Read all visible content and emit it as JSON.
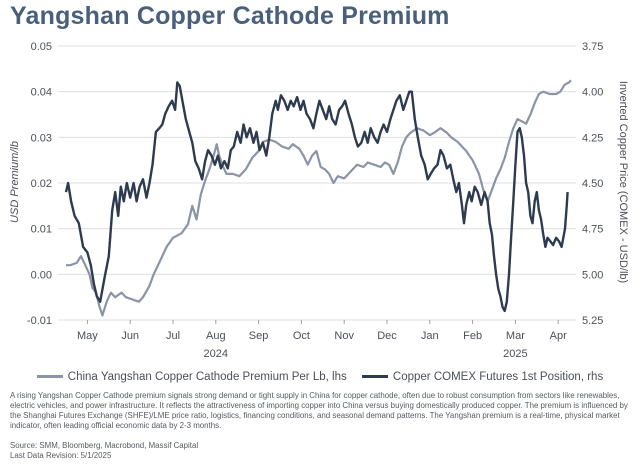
{
  "chart_data": {
    "type": "line",
    "title": "Yangshan Copper Cathode Premium",
    "ylabel_left": "USD Premium/lb",
    "ylabel_right": "Inverted Copper Price (COMEX - USD/lb)",
    "x_ticks": [
      "May",
      "Jun",
      "Jul",
      "Aug",
      "Sep",
      "Oct",
      "Nov",
      "Dec",
      "Jan",
      "Feb",
      "Mar",
      "Apr"
    ],
    "year_labels": [
      {
        "label": "2024",
        "month": "Aug"
      },
      {
        "label": "2025",
        "month": "Mar"
      }
    ],
    "y_left": {
      "min": -0.01,
      "max": 0.05,
      "ticks": [
        "-0.01",
        "0.00",
        "0.01",
        "0.02",
        "0.03",
        "0.04",
        "0.05"
      ]
    },
    "y_right": {
      "min": 3.75,
      "max": 5.25,
      "inverted": true,
      "ticks": [
        "3.75",
        "4.00",
        "4.25",
        "4.50",
        "4.75",
        "5.00",
        "5.25"
      ]
    },
    "x_unit": "months since 2024-04-15",
    "series": [
      {
        "name": "China Yangshan Copper Cathode Premium Per Lb, lhs",
        "axis": "left",
        "color": "#8a94a6",
        "points": [
          [
            0.0,
            0.002
          ],
          [
            0.1,
            0.002
          ],
          [
            0.25,
            0.0025
          ],
          [
            0.35,
            0.004
          ],
          [
            0.45,
            0.002
          ],
          [
            0.55,
            0.0
          ],
          [
            0.62,
            -0.003
          ],
          [
            0.7,
            -0.004
          ],
          [
            0.78,
            -0.007
          ],
          [
            0.85,
            -0.009
          ],
          [
            0.95,
            -0.006
          ],
          [
            1.05,
            -0.004
          ],
          [
            1.15,
            -0.005
          ],
          [
            1.3,
            -0.004
          ],
          [
            1.4,
            -0.005
          ],
          [
            1.55,
            -0.0055
          ],
          [
            1.7,
            -0.006
          ],
          [
            1.8,
            -0.005
          ],
          [
            1.95,
            -0.0025
          ],
          [
            2.05,
            0.0
          ],
          [
            2.2,
            0.003
          ],
          [
            2.35,
            0.006
          ],
          [
            2.5,
            0.008
          ],
          [
            2.7,
            0.009
          ],
          [
            2.85,
            0.011
          ],
          [
            2.95,
            0.015
          ],
          [
            3.05,
            0.012
          ],
          [
            3.15,
            0.0175
          ],
          [
            3.25,
            0.0205
          ],
          [
            3.35,
            0.023
          ],
          [
            3.45,
            0.026
          ],
          [
            3.52,
            0.0285
          ],
          [
            3.58,
            0.026
          ],
          [
            3.65,
            0.024
          ],
          [
            3.75,
            0.022
          ],
          [
            3.9,
            0.022
          ],
          [
            4.05,
            0.0215
          ],
          [
            4.2,
            0.023
          ],
          [
            4.35,
            0.0255
          ],
          [
            4.5,
            0.027
          ],
          [
            4.6,
            0.029
          ],
          [
            4.75,
            0.0295
          ],
          [
            4.9,
            0.029
          ],
          [
            5.05,
            0.028
          ],
          [
            5.2,
            0.0275
          ],
          [
            5.3,
            0.0285
          ],
          [
            5.45,
            0.0275
          ],
          [
            5.55,
            0.026
          ],
          [
            5.65,
            0.024
          ],
          [
            5.75,
            0.026
          ],
          [
            5.85,
            0.027
          ],
          [
            5.95,
            0.0235
          ],
          [
            6.05,
            0.023
          ],
          [
            6.15,
            0.022
          ],
          [
            6.25,
            0.02
          ],
          [
            6.35,
            0.0215
          ],
          [
            6.5,
            0.021
          ],
          [
            6.65,
            0.0225
          ],
          [
            6.8,
            0.024
          ],
          [
            6.95,
            0.0235
          ],
          [
            7.05,
            0.0245
          ],
          [
            7.2,
            0.024
          ],
          [
            7.35,
            0.0235
          ],
          [
            7.45,
            0.0245
          ],
          [
            7.55,
            0.024
          ],
          [
            7.65,
            0.022
          ],
          [
            7.75,
            0.0245
          ],
          [
            7.85,
            0.028
          ],
          [
            7.95,
            0.03
          ],
          [
            8.05,
            0.031
          ],
          [
            8.2,
            0.032
          ],
          [
            8.35,
            0.0315
          ],
          [
            8.5,
            0.0305
          ],
          [
            8.6,
            0.031
          ],
          [
            8.75,
            0.032
          ],
          [
            8.9,
            0.031
          ],
          [
            9.0,
            0.03
          ],
          [
            9.15,
            0.029
          ],
          [
            9.35,
            0.027
          ],
          [
            9.5,
            0.025
          ],
          [
            9.65,
            0.022
          ],
          [
            9.75,
            0.0185
          ],
          [
            9.85,
            0.016
          ],
          [
            9.95,
            0.0185
          ],
          [
            10.05,
            0.021
          ],
          [
            10.15,
            0.023
          ],
          [
            10.25,
            0.0255
          ],
          [
            10.35,
            0.029
          ],
          [
            10.45,
            0.032
          ],
          [
            10.55,
            0.034
          ],
          [
            10.65,
            0.0335
          ],
          [
            10.75,
            0.033
          ],
          [
            10.85,
            0.035
          ],
          [
            10.95,
            0.0375
          ],
          [
            11.05,
            0.0395
          ],
          [
            11.15,
            0.04
          ],
          [
            11.3,
            0.0395
          ],
          [
            11.45,
            0.0395
          ],
          [
            11.55,
            0.04
          ],
          [
            11.65,
            0.0415
          ],
          [
            11.75,
            0.042
          ],
          [
            11.8,
            0.0425
          ]
        ]
      },
      {
        "name": "Copper COMEX Futures 1st Position, rhs",
        "axis": "right",
        "color": "#2e3b4f",
        "points": [
          [
            0.0,
            4.55
          ],
          [
            0.05,
            4.5
          ],
          [
            0.12,
            4.6
          ],
          [
            0.2,
            4.68
          ],
          [
            0.3,
            4.72
          ],
          [
            0.4,
            4.85
          ],
          [
            0.5,
            4.88
          ],
          [
            0.58,
            4.95
          ],
          [
            0.65,
            5.05
          ],
          [
            0.72,
            5.12
          ],
          [
            0.8,
            5.15
          ],
          [
            0.9,
            5.02
          ],
          [
            1.0,
            4.9
          ],
          [
            1.08,
            4.65
          ],
          [
            1.15,
            4.55
          ],
          [
            1.22,
            4.68
          ],
          [
            1.28,
            4.52
          ],
          [
            1.35,
            4.6
          ],
          [
            1.42,
            4.5
          ],
          [
            1.5,
            4.58
          ],
          [
            1.58,
            4.5
          ],
          [
            1.65,
            4.6
          ],
          [
            1.72,
            4.52
          ],
          [
            1.8,
            4.48
          ],
          [
            1.88,
            4.58
          ],
          [
            1.95,
            4.5
          ],
          [
            2.02,
            4.4
          ],
          [
            2.1,
            4.22
          ],
          [
            2.18,
            4.2
          ],
          [
            2.25,
            4.18
          ],
          [
            2.32,
            4.12
          ],
          [
            2.4,
            4.08
          ],
          [
            2.48,
            4.05
          ],
          [
            2.55,
            4.1
          ],
          [
            2.6,
            3.95
          ],
          [
            2.66,
            3.97
          ],
          [
            2.72,
            4.05
          ],
          [
            2.8,
            4.15
          ],
          [
            2.88,
            4.22
          ],
          [
            2.95,
            4.28
          ],
          [
            3.02,
            4.38
          ],
          [
            3.1,
            4.42
          ],
          [
            3.18,
            4.48
          ],
          [
            3.25,
            4.38
          ],
          [
            3.32,
            4.32
          ],
          [
            3.4,
            4.35
          ],
          [
            3.48,
            4.4
          ],
          [
            3.55,
            4.35
          ],
          [
            3.62,
            4.42
          ],
          [
            3.7,
            4.38
          ],
          [
            3.78,
            4.42
          ],
          [
            3.85,
            4.32
          ],
          [
            3.92,
            4.3
          ],
          [
            4.0,
            4.22
          ],
          [
            4.08,
            4.28
          ],
          [
            4.15,
            4.18
          ],
          [
            4.22,
            4.25
          ],
          [
            4.3,
            4.2
          ],
          [
            4.38,
            4.28
          ],
          [
            4.45,
            4.22
          ],
          [
            4.52,
            4.32
          ],
          [
            4.6,
            4.28
          ],
          [
            4.68,
            4.35
          ],
          [
            4.75,
            4.25
          ],
          [
            4.82,
            4.12
          ],
          [
            4.9,
            4.05
          ],
          [
            4.95,
            4.1
          ],
          [
            5.02,
            4.02
          ],
          [
            5.1,
            4.05
          ],
          [
            5.18,
            4.1
          ],
          [
            5.25,
            4.05
          ],
          [
            5.32,
            4.08
          ],
          [
            5.4,
            4.03
          ],
          [
            5.48,
            4.1
          ],
          [
            5.55,
            4.05
          ],
          [
            5.62,
            4.12
          ],
          [
            5.7,
            4.15
          ],
          [
            5.78,
            4.2
          ],
          [
            5.85,
            4.12
          ],
          [
            5.92,
            4.05
          ],
          [
            6.0,
            4.1
          ],
          [
            6.08,
            4.15
          ],
          [
            6.15,
            4.08
          ],
          [
            6.22,
            4.15
          ],
          [
            6.3,
            4.18
          ],
          [
            6.38,
            4.1
          ],
          [
            6.45,
            4.08
          ],
          [
            6.52,
            4.05
          ],
          [
            6.6,
            4.12
          ],
          [
            6.68,
            4.18
          ],
          [
            6.75,
            4.25
          ],
          [
            6.82,
            4.3
          ],
          [
            6.9,
            4.28
          ],
          [
            6.98,
            4.22
          ],
          [
            7.05,
            4.28
          ],
          [
            7.12,
            4.2
          ],
          [
            7.2,
            4.25
          ],
          [
            7.28,
            4.28
          ],
          [
            7.35,
            4.22
          ],
          [
            7.42,
            4.18
          ],
          [
            7.5,
            4.22
          ],
          [
            7.58,
            4.15
          ],
          [
            7.65,
            4.1
          ],
          [
            7.72,
            4.05
          ],
          [
            7.8,
            4.02
          ],
          [
            7.88,
            4.1
          ],
          [
            7.95,
            4.05
          ],
          [
            8.02,
            4.0
          ],
          [
            8.08,
            4.0
          ],
          [
            8.15,
            4.15
          ],
          [
            8.22,
            4.25
          ],
          [
            8.3,
            4.35
          ],
          [
            8.38,
            4.4
          ],
          [
            8.45,
            4.48
          ],
          [
            8.52,
            4.45
          ],
          [
            8.6,
            4.42
          ],
          [
            8.68,
            4.4
          ],
          [
            8.75,
            4.32
          ],
          [
            8.82,
            4.35
          ],
          [
            8.9,
            4.42
          ],
          [
            8.98,
            4.4
          ],
          [
            9.05,
            4.48
          ],
          [
            9.12,
            4.55
          ],
          [
            9.18,
            4.5
          ],
          [
            9.25,
            4.62
          ],
          [
            9.3,
            4.72
          ],
          [
            9.35,
            4.62
          ],
          [
            9.42,
            4.55
          ],
          [
            9.48,
            4.6
          ],
          [
            9.55,
            4.52
          ],
          [
            9.62,
            4.55
          ],
          [
            9.7,
            4.62
          ],
          [
            9.78,
            4.55
          ],
          [
            9.85,
            4.6
          ],
          [
            9.9,
            4.72
          ],
          [
            9.95,
            4.78
          ],
          [
            10.0,
            4.9
          ],
          [
            10.05,
            5.0
          ],
          [
            10.1,
            5.08
          ],
          [
            10.15,
            5.12
          ],
          [
            10.2,
            5.18
          ],
          [
            10.25,
            5.2
          ],
          [
            10.3,
            5.15
          ],
          [
            10.35,
            5.0
          ],
          [
            10.4,
            4.8
          ],
          [
            10.45,
            4.6
          ],
          [
            10.5,
            4.4
          ],
          [
            10.55,
            4.22
          ],
          [
            10.6,
            4.2
          ],
          [
            10.65,
            4.25
          ],
          [
            10.7,
            4.35
          ],
          [
            10.75,
            4.5
          ],
          [
            10.8,
            4.55
          ],
          [
            10.85,
            4.68
          ],
          [
            10.9,
            4.72
          ],
          [
            10.95,
            4.6
          ],
          [
            11.0,
            4.55
          ],
          [
            11.05,
            4.65
          ],
          [
            11.1,
            4.7
          ],
          [
            11.15,
            4.78
          ],
          [
            11.2,
            4.85
          ],
          [
            11.25,
            4.8
          ],
          [
            11.32,
            4.82
          ],
          [
            11.38,
            4.84
          ],
          [
            11.45,
            4.8
          ],
          [
            11.52,
            4.82
          ],
          [
            11.58,
            4.85
          ],
          [
            11.62,
            4.8
          ],
          [
            11.66,
            4.75
          ],
          [
            11.7,
            4.62
          ],
          [
            11.72,
            4.55
          ]
        ]
      }
    ]
  },
  "note": "A rising Yangshan Copper Cathode premium signals strong demand or tight supply in China for copper cathode, often due to robust consumption from sectors like renewables, electric vehicles, and power infrastructure. It reflects the attractiveness of importing copper into China versus buying domestically produced copper. The premium is influenced by the Shanghai Futures Exchange (SHFE)/LME price ratio, logistics, financing conditions, and seasonal demand patterns. The Yangshan premium is a real-time, physical market indicator, often leading official economic data by 2-3 months.",
  "source": "Source: SMM, Bloomberg, Macrobond, Massif Capital",
  "revision": "Last Data Revision: 5/1/2025",
  "colors": {
    "title": "#4a5f79",
    "premium_line": "#8a94a6",
    "copper_line": "#2e3b4f",
    "grid": "#dcdfe4"
  }
}
